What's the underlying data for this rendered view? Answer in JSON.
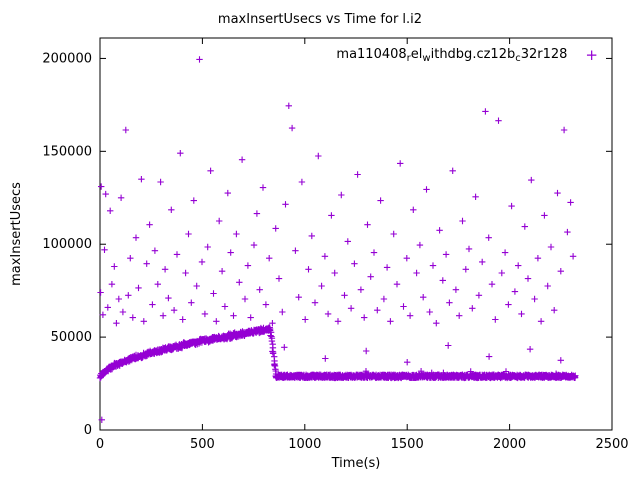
{
  "title": "maxInsertUsecs vs Time for l.i2",
  "axes": {
    "xlabel": "Time(s)",
    "ylabel": "maxInsertUsecs",
    "xticks": [
      0,
      500,
      1000,
      1500,
      2000,
      2500
    ],
    "yticks": [
      0,
      50000,
      100000,
      150000,
      200000
    ],
    "xlim": [
      0,
      2500
    ],
    "ylim": [
      0,
      211000
    ]
  },
  "legend": {
    "series_label_raw": "ma110408_rel_withdbg.cz12b_c32r128",
    "segments": [
      {
        "text": "ma110408"
      },
      {
        "text": "r",
        "sub": true
      },
      {
        "text": "el"
      },
      {
        "text": "w",
        "sub": true
      },
      {
        "text": "ithdbg.cz12b"
      },
      {
        "text": "c",
        "sub": true
      },
      {
        "text": "32r128"
      }
    ],
    "marker_glyph": "+"
  },
  "style": {
    "point_color": "#9400d3",
    "axis_color": "#000000",
    "background": "#ffffff"
  },
  "chart_data": {
    "type": "scatter",
    "title": "maxInsertUsecs vs Time for l.i2",
    "xlabel": "Time(s)",
    "ylabel": "maxInsertUsecs",
    "xlim": [
      0,
      2500
    ],
    "ylim": [
      0,
      211000
    ],
    "grid": false,
    "legend_position": "top-right-inside",
    "series_name": "ma110408_rel_withdbg.cz12b_c32r128",
    "band": {
      "description": "dense band of points: rises from ~28000 at t=0 to ~54500 at t~830, sharp drop, then flat ~29000 until t~2320",
      "rise": {
        "t_start": 0,
        "t_end": 832,
        "y_start": 27800,
        "y_end": 54300,
        "exponent": 0.55,
        "jitter": 1500,
        "step": 1.6
      },
      "drop": {
        "t_start": 832,
        "t_end": 858,
        "y_from": 54000,
        "y_to": 29500
      },
      "plateau": {
        "t_start": 858,
        "t_end": 2322,
        "y": 28900,
        "jitter": 850,
        "step": 1.4,
        "spike_prob": 0.02,
        "spike_max": 2600
      }
    },
    "outliers": [
      [
        3,
        74000
      ],
      [
        6,
        131000
      ],
      [
        9,
        5500
      ],
      [
        14,
        62000
      ],
      [
        22,
        97000
      ],
      [
        28,
        127000
      ],
      [
        38,
        66000
      ],
      [
        50,
        118000
      ],
      [
        58,
        78500
      ],
      [
        70,
        88000
      ],
      [
        80,
        57500
      ],
      [
        92,
        70500
      ],
      [
        103,
        125000
      ],
      [
        112,
        63500
      ],
      [
        126,
        161500
      ],
      [
        138,
        72500
      ],
      [
        148,
        92500
      ],
      [
        160,
        60500
      ],
      [
        176,
        103500
      ],
      [
        188,
        76500
      ],
      [
        202,
        135000
      ],
      [
        214,
        58500
      ],
      [
        228,
        89500
      ],
      [
        242,
        110500
      ],
      [
        256,
        67500
      ],
      [
        268,
        96500
      ],
      [
        282,
        78500
      ],
      [
        296,
        133500
      ],
      [
        308,
        61500
      ],
      [
        318,
        86500
      ],
      [
        334,
        71000
      ],
      [
        348,
        118500
      ],
      [
        362,
        64500
      ],
      [
        376,
        94500
      ],
      [
        392,
        149000
      ],
      [
        404,
        59500
      ],
      [
        418,
        84500
      ],
      [
        432,
        105500
      ],
      [
        446,
        68500
      ],
      [
        458,
        123500
      ],
      [
        472,
        77500
      ],
      [
        486,
        199500
      ],
      [
        498,
        90500
      ],
      [
        512,
        62500
      ],
      [
        526,
        98500
      ],
      [
        540,
        139500
      ],
      [
        554,
        73500
      ],
      [
        568,
        58500
      ],
      [
        582,
        112500
      ],
      [
        596,
        85500
      ],
      [
        610,
        66500
      ],
      [
        624,
        127500
      ],
      [
        638,
        95500
      ],
      [
        652,
        61500
      ],
      [
        666,
        105500
      ],
      [
        680,
        79500
      ],
      [
        694,
        145500
      ],
      [
        708,
        70500
      ],
      [
        722,
        88500
      ],
      [
        736,
        60500
      ],
      [
        752,
        99500
      ],
      [
        766,
        116500
      ],
      [
        780,
        75500
      ],
      [
        796,
        130500
      ],
      [
        810,
        67500
      ],
      [
        826,
        92500
      ],
      [
        842,
        57500
      ],
      [
        858,
        108500
      ],
      [
        874,
        81500
      ],
      [
        890,
        63500
      ],
      [
        900,
        44500
      ],
      [
        906,
        121500
      ],
      [
        922,
        174500
      ],
      [
        938,
        162500
      ],
      [
        954,
        96500
      ],
      [
        970,
        71500
      ],
      [
        986,
        133500
      ],
      [
        1002,
        59500
      ],
      [
        1018,
        86500
      ],
      [
        1034,
        104500
      ],
      [
        1050,
        68500
      ],
      [
        1066,
        147500
      ],
      [
        1082,
        77500
      ],
      [
        1098,
        93500
      ],
      [
        1100,
        38500
      ],
      [
        1114,
        62500
      ],
      [
        1130,
        115500
      ],
      [
        1146,
        84500
      ],
      [
        1162,
        58500
      ],
      [
        1178,
        126500
      ],
      [
        1194,
        72500
      ],
      [
        1210,
        101500
      ],
      [
        1226,
        65500
      ],
      [
        1242,
        89500
      ],
      [
        1258,
        137500
      ],
      [
        1274,
        75500
      ],
      [
        1290,
        60500
      ],
      [
        1300,
        42500
      ],
      [
        1306,
        110500
      ],
      [
        1322,
        82500
      ],
      [
        1338,
        95500
      ],
      [
        1354,
        64500
      ],
      [
        1370,
        123500
      ],
      [
        1386,
        70500
      ],
      [
        1402,
        87500
      ],
      [
        1418,
        58500
      ],
      [
        1434,
        105500
      ],
      [
        1450,
        78500
      ],
      [
        1466,
        143500
      ],
      [
        1482,
        66500
      ],
      [
        1498,
        92500
      ],
      [
        1500,
        36500
      ],
      [
        1514,
        61500
      ],
      [
        1530,
        118500
      ],
      [
        1546,
        84500
      ],
      [
        1562,
        99500
      ],
      [
        1578,
        71500
      ],
      [
        1594,
        129500
      ],
      [
        1610,
        63500
      ],
      [
        1626,
        88500
      ],
      [
        1642,
        57500
      ],
      [
        1658,
        107500
      ],
      [
        1674,
        80500
      ],
      [
        1690,
        94500
      ],
      [
        1700,
        45500
      ],
      [
        1706,
        68500
      ],
      [
        1722,
        139500
      ],
      [
        1738,
        75500
      ],
      [
        1754,
        61500
      ],
      [
        1770,
        112500
      ],
      [
        1786,
        86500
      ],
      [
        1802,
        97500
      ],
      [
        1818,
        65500
      ],
      [
        1834,
        125500
      ],
      [
        1850,
        72500
      ],
      [
        1866,
        90500
      ],
      [
        1882,
        171500
      ],
      [
        1898,
        103500
      ],
      [
        1900,
        39500
      ],
      [
        1914,
        78500
      ],
      [
        1930,
        59500
      ],
      [
        1946,
        166500
      ],
      [
        1962,
        84500
      ],
      [
        1978,
        95500
      ],
      [
        1994,
        67500
      ],
      [
        2010,
        120500
      ],
      [
        2026,
        74500
      ],
      [
        2042,
        88500
      ],
      [
        2058,
        62500
      ],
      [
        2074,
        109500
      ],
      [
        2090,
        81500
      ],
      [
        2100,
        43500
      ],
      [
        2106,
        134500
      ],
      [
        2122,
        70500
      ],
      [
        2138,
        92500
      ],
      [
        2154,
        58500
      ],
      [
        2170,
        115500
      ],
      [
        2186,
        77500
      ],
      [
        2202,
        98500
      ],
      [
        2218,
        64500
      ],
      [
        2234,
        127500
      ],
      [
        2250,
        85500
      ],
      [
        2250,
        37500
      ],
      [
        2266,
        161500
      ],
      [
        2282,
        106500
      ],
      [
        2298,
        122500
      ],
      [
        2310,
        93500
      ]
    ]
  }
}
